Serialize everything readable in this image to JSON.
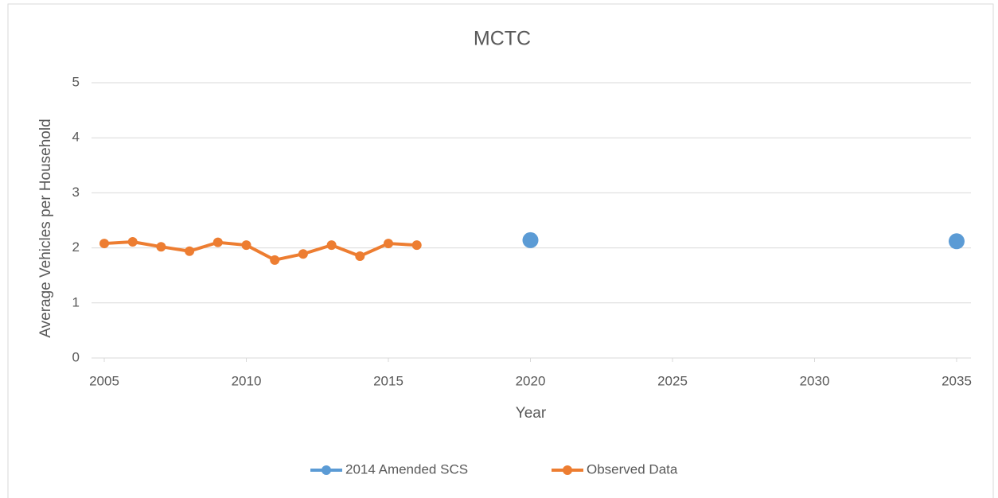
{
  "chart_data": {
    "type": "line",
    "title": "MCTC",
    "x_label": "Year",
    "y_label": "Average Vehicles per Household",
    "series": [
      {
        "name": "2014 Amended SCS",
        "color": "#5b9bd5",
        "show_line": false,
        "x": [
          2020,
          2035
        ],
        "values": [
          2.14,
          2.12
        ]
      },
      {
        "name": "Observed Data",
        "color": "#ed7d31",
        "show_line": true,
        "x": [
          2005,
          2006,
          2007,
          2008,
          2009,
          2010,
          2011,
          2012,
          2013,
          2014,
          2015,
          2016
        ],
        "values": [
          2.08,
          2.11,
          2.02,
          1.94,
          2.1,
          2.05,
          1.78,
          1.89,
          2.05,
          1.85,
          2.08,
          2.05
        ]
      }
    ],
    "xlim": [
      2005,
      2035
    ],
    "xticks": [
      2005,
      2010,
      2015,
      2020,
      2025,
      2030,
      2035
    ],
    "ylim": [
      0,
      5
    ],
    "yticks": [
      0,
      1,
      2,
      3,
      4,
      5
    ],
    "grid": true,
    "legend": "bottom"
  }
}
